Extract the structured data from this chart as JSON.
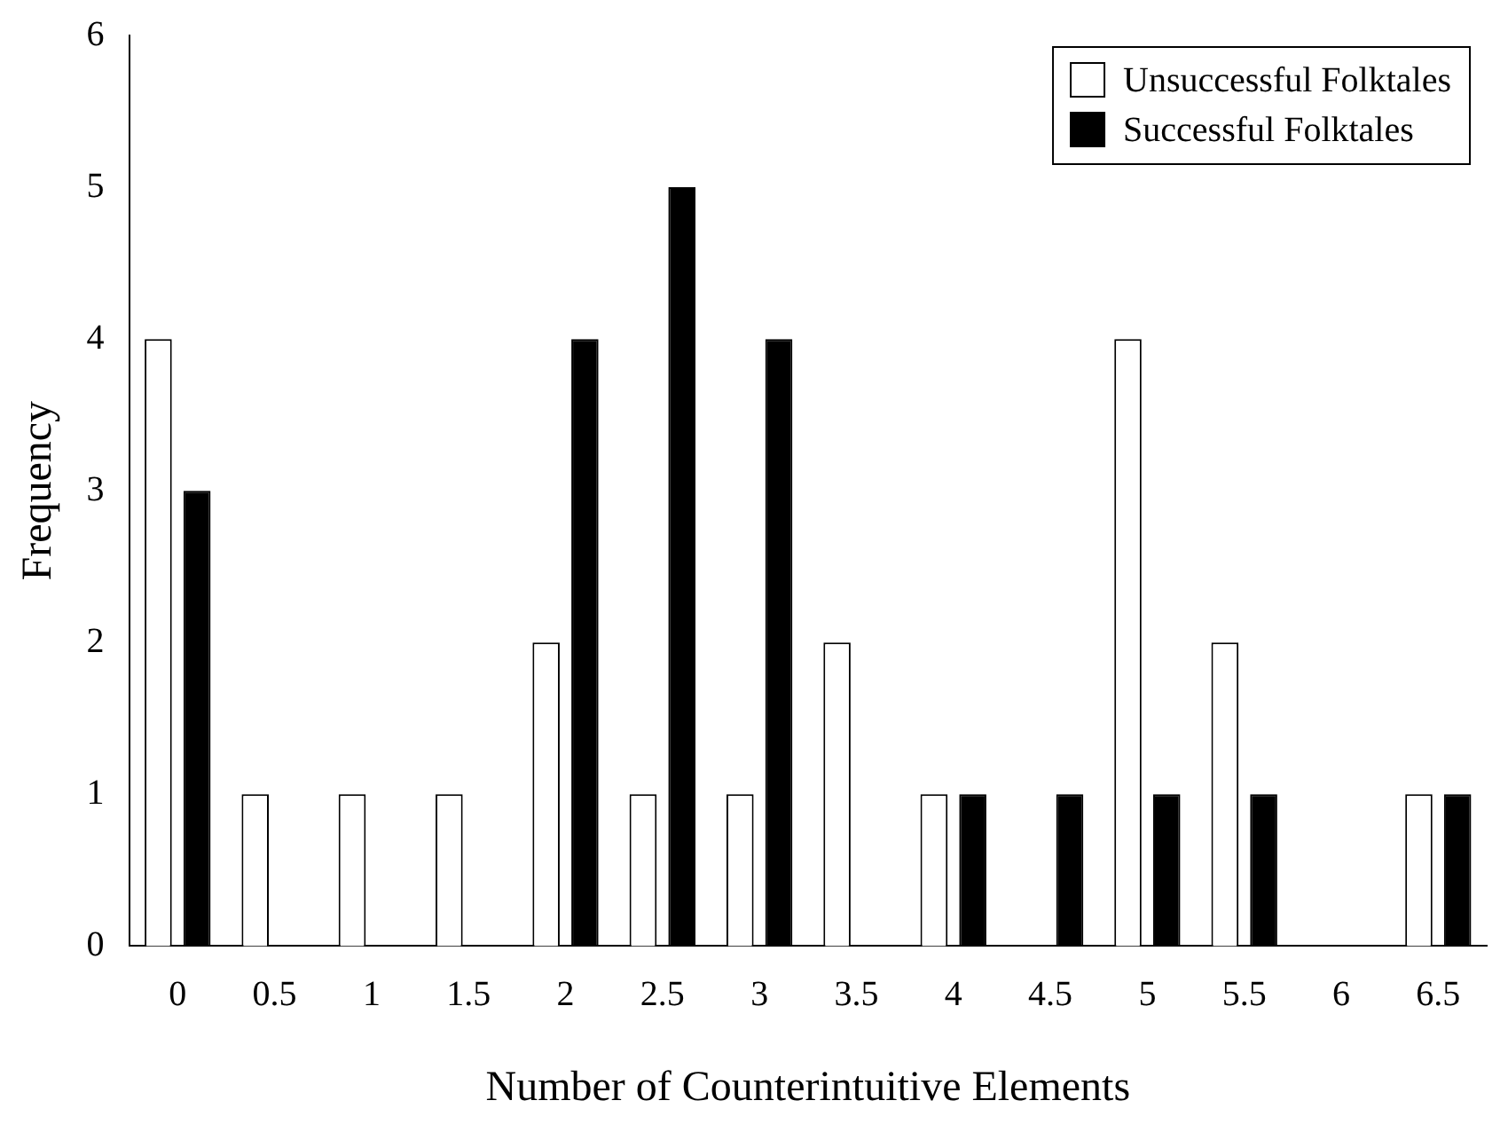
{
  "chart_data": {
    "type": "bar",
    "xlabel": "Number of Counterintuitive Elements",
    "ylabel": "Frequency",
    "categories": [
      "0",
      "0.5",
      "1",
      "1.5",
      "2",
      "2.5",
      "3",
      "3.5",
      "4",
      "4.5",
      "5",
      "5.5",
      "6",
      "6.5"
    ],
    "series": [
      {
        "name": "Unsuccessful Folktales",
        "color": "#ffffff",
        "values": [
          4,
          1,
          1,
          1,
          2,
          1,
          1,
          2,
          1,
          0,
          4,
          2,
          0,
          1
        ]
      },
      {
        "name": "Successful Folktales",
        "color": "#000000",
        "values": [
          3,
          0,
          0,
          0,
          4,
          5,
          4,
          0,
          1,
          1,
          1,
          1,
          0,
          1
        ]
      }
    ],
    "ylim": [
      0,
      6
    ],
    "yticks": [
      0,
      1,
      2,
      3,
      4,
      5,
      6
    ],
    "grid": false,
    "legend": "top right"
  }
}
